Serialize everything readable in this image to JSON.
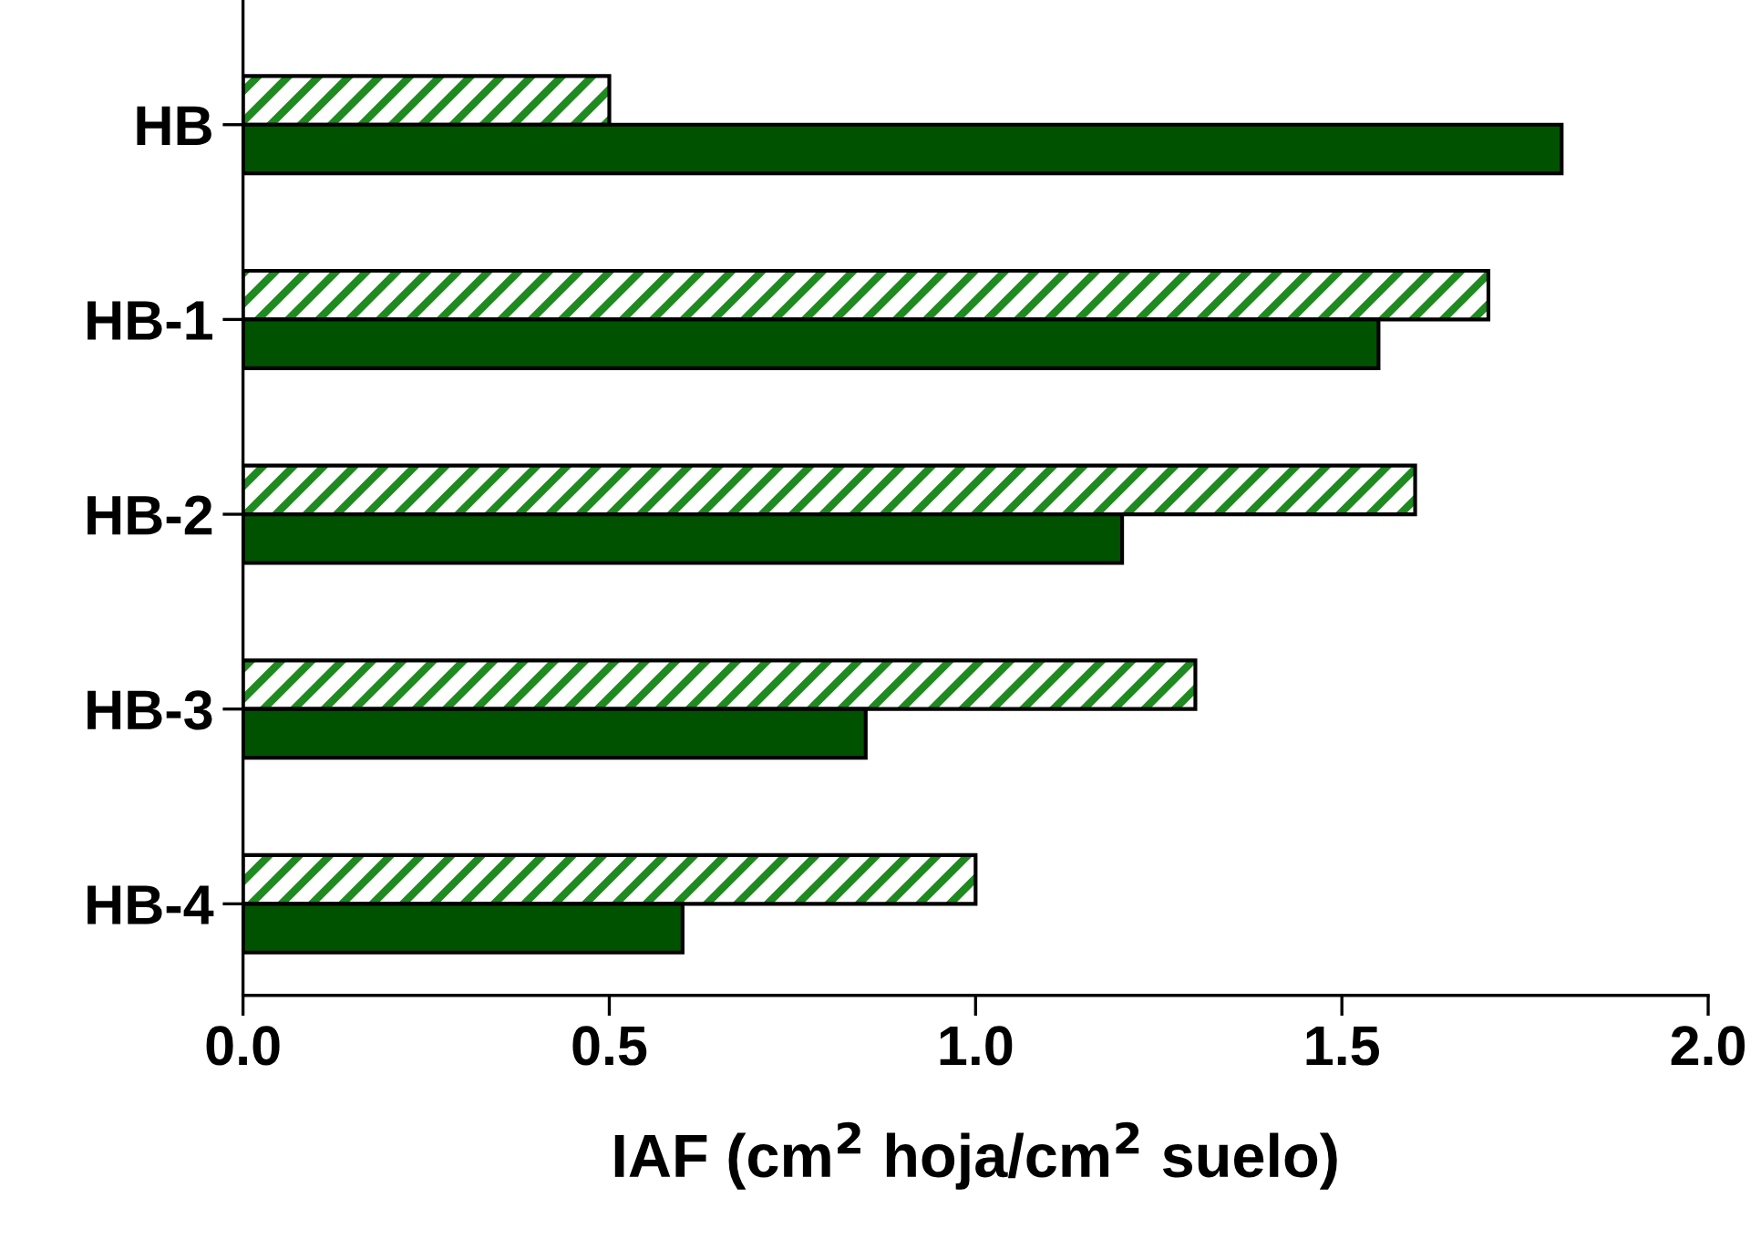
{
  "chart_data": {
    "type": "bar",
    "orientation": "horizontal",
    "xlabel": "IAF (cm$^{2}$ hoja/cm$^{2}$ suelo)",
    "categories": [
      "HB",
      "HB-1",
      "HB-2",
      "HB-3",
      "HB-4"
    ],
    "series": [
      {
        "color": "#1f8a1f",
        "values": [
          0.5,
          1.7,
          1.6,
          1.3,
          1.0
        ]
      },
      {
        "color": "#005200",
        "values": [
          1.8,
          1.55,
          1.2,
          0.85,
          0.6
        ]
      }
    ],
    "xlim": [
      0,
      2.0
    ],
    "xticks": [
      {
        "value": 0,
        "label": "0.0"
      },
      {
        "value": 0.5,
        "label": "0.5"
      },
      {
        "value": 1.0,
        "label": "1.0"
      },
      {
        "value": 1.5,
        "label": "1.5"
      },
      {
        "value": 2.0,
        "label": "2.0"
      }
    ],
    "grid": false,
    "legend": false
  }
}
